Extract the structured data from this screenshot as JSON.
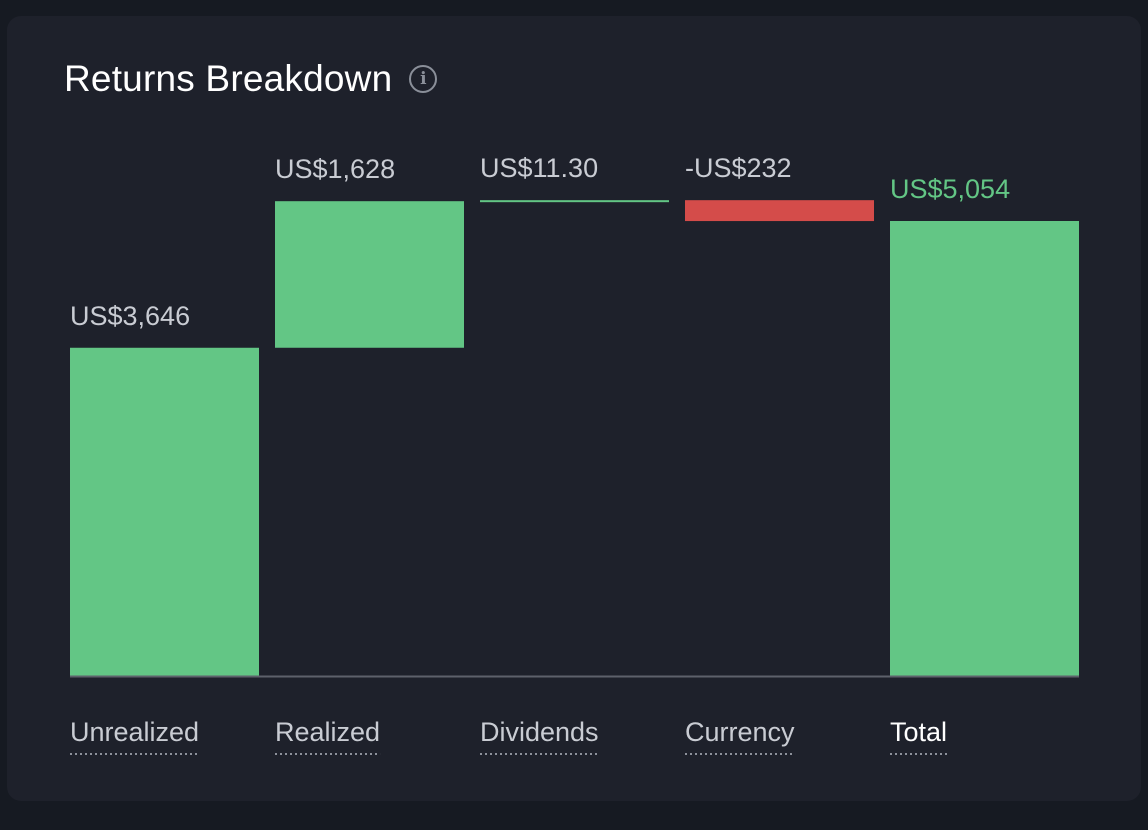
{
  "card": {
    "title": "Returns Breakdown",
    "info_icon": "info-icon"
  },
  "colors": {
    "card_background": "#1e212b",
    "positive": "#63c685",
    "negative": "#d44c4a",
    "label": "#c9ccd3",
    "total_label": "#63c685",
    "baseline": "#5d616b"
  },
  "chart_data": {
    "type": "bar",
    "subtype": "waterfall",
    "title": "Returns Breakdown",
    "categories": [
      "Unrealized",
      "Realized",
      "Dividends",
      "Currency",
      "Total"
    ],
    "values": [
      3646,
      1628,
      11.3,
      -232,
      5054
    ],
    "value_labels": [
      "US$3,646",
      "US$1,628",
      "US$11.30",
      "-US$232",
      "US$5,054"
    ],
    "kinds": [
      "increase",
      "increase",
      "increase",
      "decrease",
      "total"
    ],
    "ylim": [
      0,
      5054
    ],
    "grid": false,
    "legend": "none"
  }
}
